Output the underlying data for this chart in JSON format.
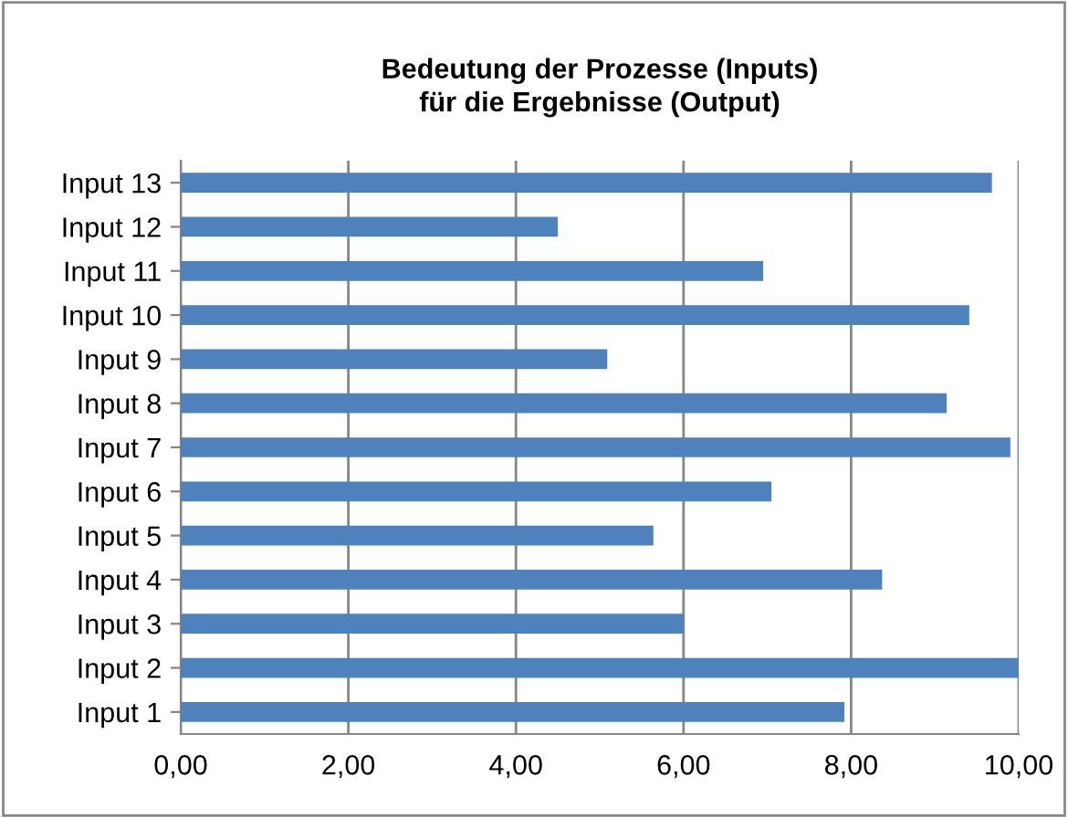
{
  "chart_data": {
    "type": "bar",
    "orientation": "horizontal",
    "title": "Bedeutung der Prozesse (Inputs)\nfür die Ergebnisse (Output)",
    "categories": [
      "Input 13",
      "Input 12",
      "Input 11",
      "Input 10",
      "Input 9",
      "Input 8",
      "Input 7",
      "Input 6",
      "Input 5",
      "Input 4",
      "Input 3",
      "Input 2",
      "Input 1"
    ],
    "values": [
      9.68,
      4.5,
      6.95,
      9.41,
      5.09,
      9.14,
      9.9,
      7.05,
      5.64,
      8.37,
      6.0,
      10.0,
      7.92
    ],
    "color": "#4f81bd",
    "xlim": [
      0,
      10
    ],
    "xticks": [
      {
        "value": 0,
        "label": "0,00"
      },
      {
        "value": 2,
        "label": "2,00"
      },
      {
        "value": 4,
        "label": "4,00"
      },
      {
        "value": 6,
        "label": "6,00"
      },
      {
        "value": 8,
        "label": "8,00"
      },
      {
        "value": 10,
        "label": "10,00"
      }
    ],
    "grid": "x",
    "legend": false
  }
}
